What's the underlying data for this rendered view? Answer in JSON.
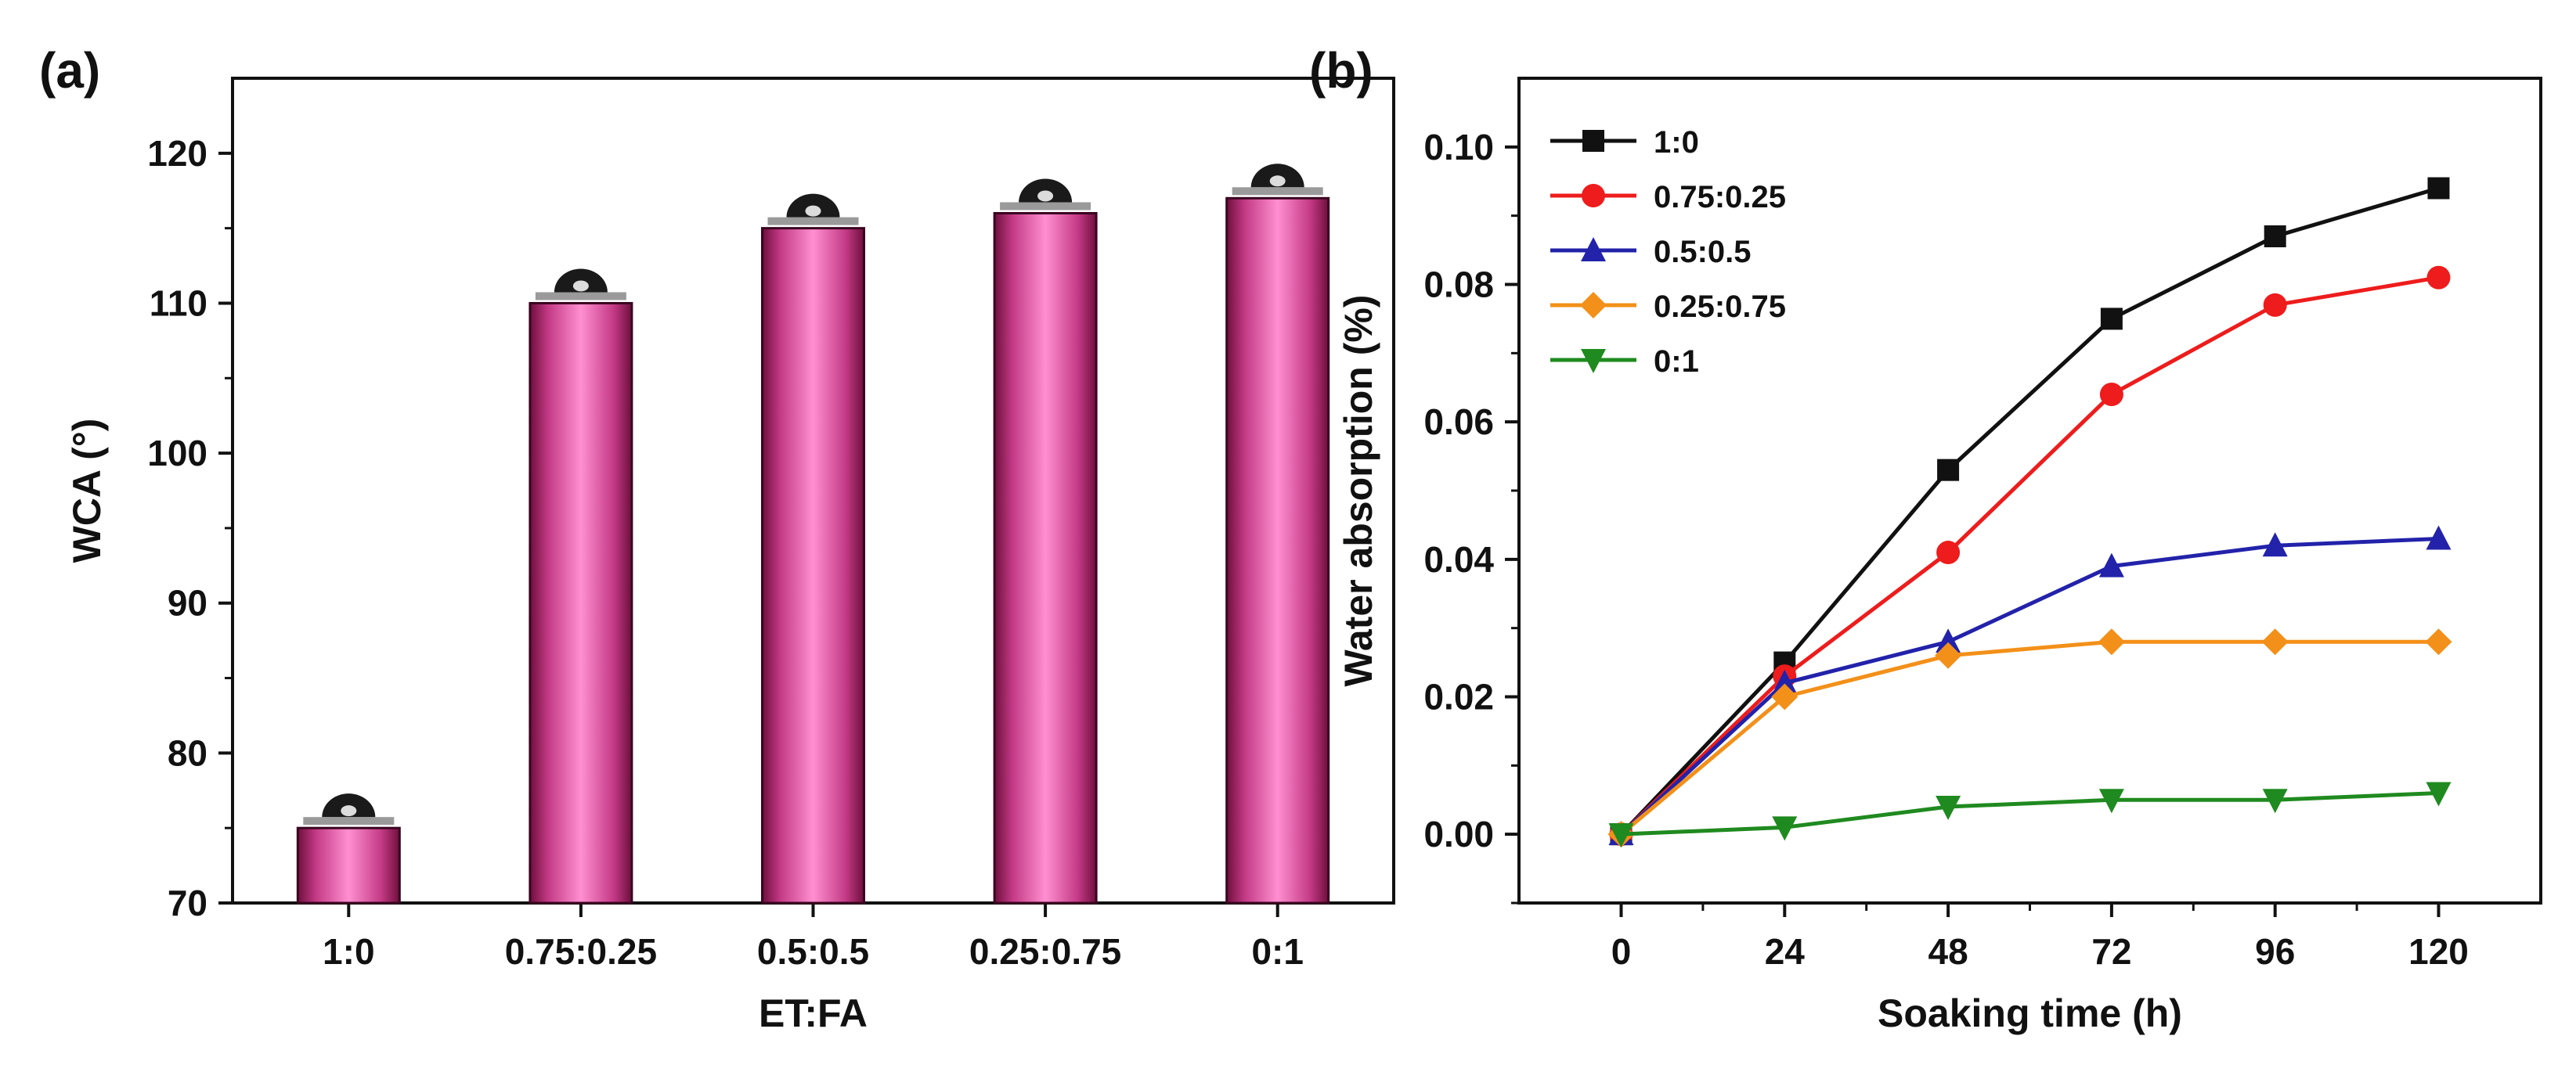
{
  "chart_data": [
    {
      "panel": "(a)",
      "type": "bar",
      "title": "",
      "xlabel": "ET:FA",
      "ylabel": "WCA (°)",
      "categories": [
        "1:0",
        "0.75:0.25",
        "0.5:0.5",
        "0.25:0.75",
        "0:1"
      ],
      "values": [
        75,
        110,
        115,
        116,
        117
      ],
      "ylim": [
        70,
        125
      ],
      "yticks": [
        70,
        80,
        90,
        100,
        110,
        120
      ],
      "grid": false,
      "bar_color": "#e0509a",
      "annotations": "water droplet images above each bar"
    },
    {
      "panel": "(b)",
      "type": "line",
      "title": "",
      "xlabel": "Soaking time (h)",
      "ylabel": "Water absorption (%)",
      "x": [
        0,
        24,
        48,
        72,
        96,
        120
      ],
      "xlim": [
        -15,
        135
      ],
      "ylim": [
        -0.01,
        0.11
      ],
      "xticks": [
        0,
        24,
        48,
        72,
        96,
        120
      ],
      "yticks": [
        "0.00",
        "0.02",
        "0.04",
        "0.06",
        "0.08",
        "0.10"
      ],
      "grid": false,
      "legend_position": "top-left",
      "series": [
        {
          "name": "1:0",
          "marker": "square",
          "color": "#111111",
          "values": [
            0,
            0.025,
            0.053,
            0.075,
            0.087,
            0.094
          ]
        },
        {
          "name": "0.75:0.25",
          "marker": "circle",
          "color": "#ee1c1c",
          "values": [
            0,
            0.023,
            0.041,
            0.064,
            0.077,
            0.081
          ]
        },
        {
          "name": "0.5:0.5",
          "marker": "triangle-up",
          "color": "#2222aa",
          "values": [
            0,
            0.022,
            0.028,
            0.039,
            0.042,
            0.043
          ]
        },
        {
          "name": "0.25:0.75",
          "marker": "diamond",
          "color": "#f39019",
          "values": [
            0,
            0.02,
            0.026,
            0.028,
            0.028,
            0.028
          ]
        },
        {
          "name": "0:1",
          "marker": "triangle-down",
          "color": "#1f8a1f",
          "values": [
            0,
            0.001,
            0.004,
            0.005,
            0.005,
            0.006
          ]
        }
      ]
    }
  ]
}
